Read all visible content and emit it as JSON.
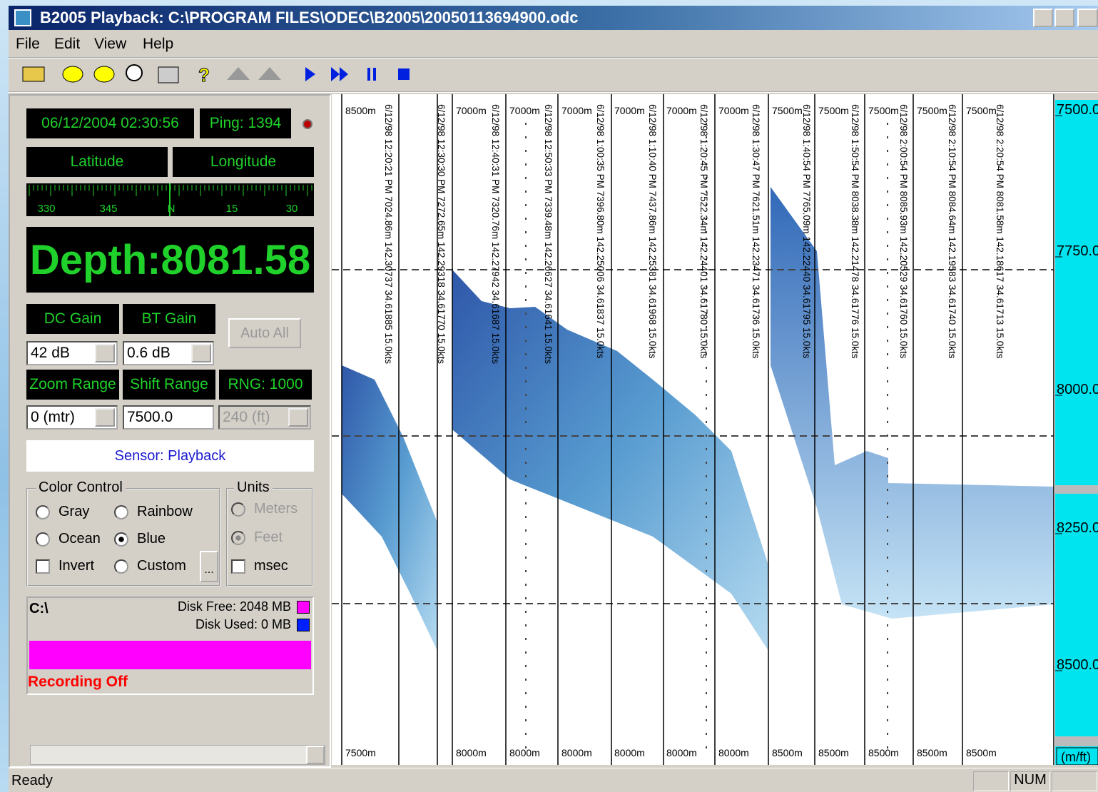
{
  "title": "B2005 Playback: C:\\PROGRAM FILES\\ODEC\\B2005\\20050113694900.odc",
  "menu": [
    "File",
    "Edit",
    "View",
    "Help"
  ],
  "panel": {
    "datetime": "06/12/2004 02:30:56",
    "ping": "Ping: 1394",
    "latitude": "Latitude",
    "longitude": "Longitude",
    "compass": [
      "330",
      "345",
      "N",
      "15",
      "30"
    ],
    "depth": "Depth:8081.58",
    "dc_gain": "DC Gain",
    "bt_gain": "BT Gain",
    "auto_all": "Auto All",
    "dc_value": "42 dB",
    "bt_value": "0.6 dB",
    "zoom_range": "Zoom Range",
    "shift_range": "Shift Range",
    "rng": "RNG: 1000",
    "zoom_value": "0 (mtr)",
    "shift_value": "7500.0",
    "rng_value": "240 (ft)",
    "sensor": "Sensor: Playback",
    "color_control": {
      "title": "Color Control",
      "options": [
        "Gray",
        "Rainbow",
        "Ocean",
        "Blue",
        "Custom"
      ],
      "invert": "Invert",
      "more": "..."
    },
    "units": {
      "title": "Units",
      "options": [
        "Meters",
        "Feet"
      ],
      "msec": "msec"
    },
    "disk": {
      "drive": "C:\\",
      "free": "Disk Free: 2048 MB",
      "used": "Disk Used: 0 MB",
      "recording": "Recording Off"
    }
  },
  "echogram": {
    "top_labels": [
      "8500m",
      "7000m",
      "7000m",
      "7000m",
      "7000m",
      "7000m",
      "7000m",
      "7500m",
      "7500m",
      "7500m",
      "7500m",
      "7500m"
    ],
    "bottom_labels": [
      "7500m",
      "8000m",
      "8000m",
      "8000m",
      "8000m",
      "8000m",
      "8000m",
      "8500m",
      "8500m",
      "8500m",
      "8500m",
      "8500m"
    ],
    "annotations": [
      "6/12/98 12:20:21 PM 7024.86m 142.30737 34.61885 15.0kts",
      "6/12/98 12:30:30 PM 7272.65m 142.29318 34.61770 15.0kts",
      "6/12/98 12:40:31 PM 7320.76m 142.27942 34.61687 15.0kts",
      "6/12/98 12:50:33 PM 7339.48m 142.26627 34.61641 15.0kts",
      "6/12/98 1:00:35 PM 7396.80m 142.25006 34.61837 15.0kts",
      "6/12/98 1:10:40 PM 7437.86m 142.25381 34.61968 15.0kts",
      "6/12/98 1:20:45 PM 7522.34m 142.24401 34.61780 15.0kts",
      "6/12/98 1:30:47 PM 7621.51m 142.23471 34.61736 15.0kts",
      "6/12/98 1:40:54 PM 7765.09m 142.22440 34.61795 15.0kts",
      "6/12/98 1:50:54 PM 8038.38m 142.21478 34.61776 15.0kts",
      "6/12/98 2:00:54 PM 8085.93m 142.20529 34.61760 15.0kts",
      "6/12/98 2:10:54 PM 8084.64m 142.19583 34.61740 15.0kts",
      "6/12/98 2:20:54 PM 8081.58m 142.18617 34.61713 15.0kts"
    ],
    "scale": [
      "7500.0",
      "7750.0",
      "8000.0",
      "8250.0",
      "8500.0"
    ],
    "scale_unit": "(m/ft)"
  },
  "status": {
    "text": "Ready",
    "num": "NUM"
  }
}
